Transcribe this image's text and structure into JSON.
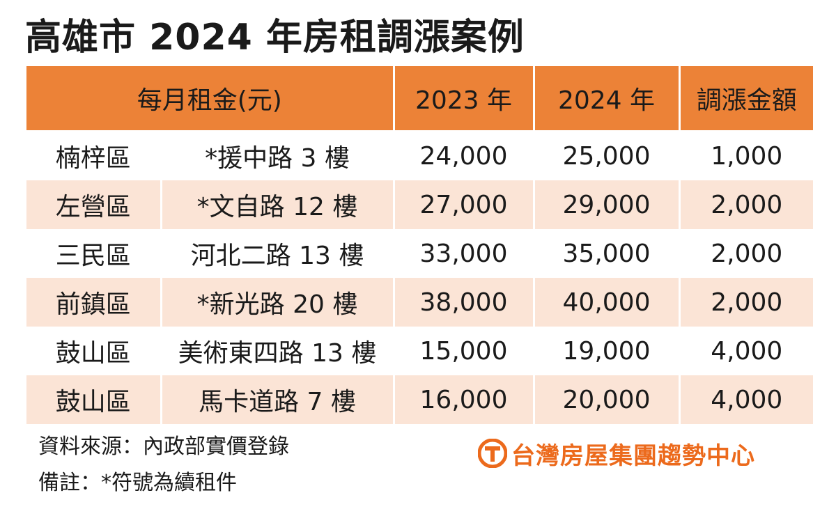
{
  "title": "高雄市 2024 年房租調漲案例",
  "table": {
    "headers": [
      "每月租金(元)",
      "2023 年",
      "2024 年",
      "調漲金額"
    ],
    "rows": [
      {
        "district": "楠梓區",
        "address": "*援中路 3 樓",
        "y2023": "24,000",
        "y2024": "25,000",
        "increase": "1,000"
      },
      {
        "district": "左營區",
        "address": "*文自路 12 樓",
        "y2023": "27,000",
        "y2024": "29,000",
        "increase": "2,000"
      },
      {
        "district": "三民區",
        "address": "河北二路 13 樓",
        "y2023": "33,000",
        "y2024": "35,000",
        "increase": "2,000"
      },
      {
        "district": "前鎮區",
        "address": "*新光路 20 樓",
        "y2023": "38,000",
        "y2024": "40,000",
        "increase": "2,000"
      },
      {
        "district": "鼓山區",
        "address": "美術東四路 13 樓",
        "y2023": "15,000",
        "y2024": "19,000",
        "increase": "4,000"
      },
      {
        "district": "鼓山區",
        "address": "馬卡道路 7 樓",
        "y2023": "16,000",
        "y2024": "20,000",
        "increase": "4,000"
      }
    ]
  },
  "footnotes": {
    "source": "資料來源：內政部實價登錄",
    "note": "備註：*符號為續租件"
  },
  "brand": {
    "name": "台灣房屋集團趨勢中心",
    "icon": "taiwan-realty-logo-icon",
    "color": "#ec6a1c"
  },
  "colors": {
    "header_bg": "#ec8237",
    "shaded_row_bg": "#fbe4d6"
  }
}
